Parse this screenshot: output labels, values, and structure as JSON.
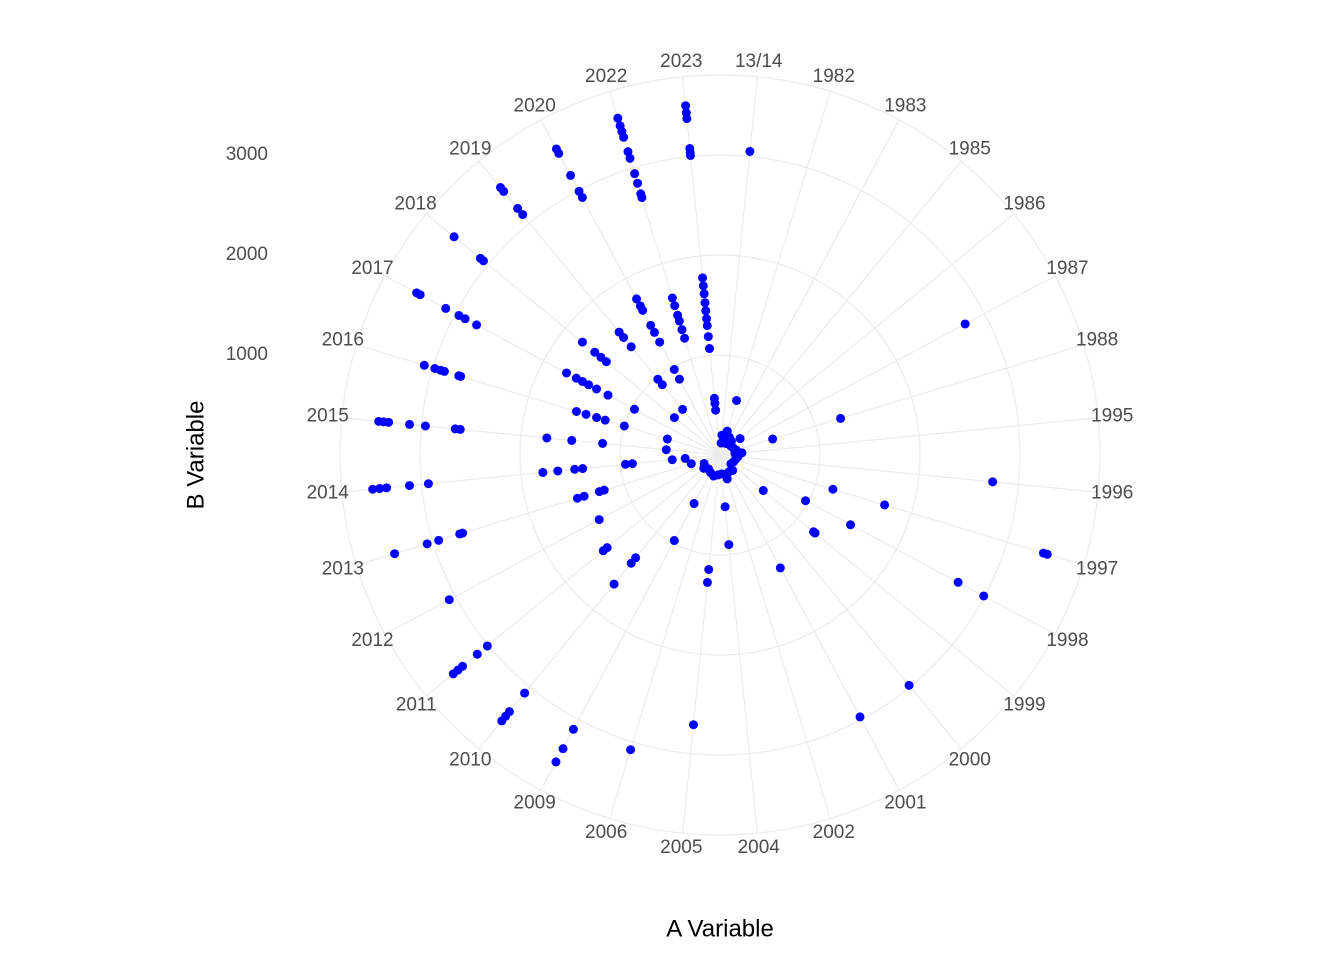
{
  "chart_data": {
    "type": "polar-scatter",
    "x_label": "A Variable",
    "y_label": "B Variable",
    "categories": [
      "13/14",
      "1982",
      "1983",
      "1985",
      "1986",
      "1987",
      "1988",
      "1995",
      "1996",
      "1997",
      "1998",
      "1999",
      "2000",
      "2001",
      "2002",
      "2004",
      "2005",
      "2006",
      "2009",
      "2010",
      "2011",
      "2012",
      "2013",
      "2014",
      "2015",
      "2016",
      "2017",
      "2018",
      "2019",
      "2020",
      "2022",
      "2023"
    ],
    "color": "blue",
    "grid": true,
    "ylim": [
      0,
      3800
    ],
    "yticks": [
      1000,
      2000,
      3000
    ],
    "series": [
      {
        "x": "13/14",
        "values": [
          3050,
          200,
          120
        ]
      },
      {
        "x": "1982",
        "values": [
          570,
          250,
          150
        ]
      },
      {
        "x": "1983",
        "values": [
          200,
          130
        ]
      },
      {
        "x": "1985",
        "values": [
          180
        ]
      },
      {
        "x": "1986",
        "values": [
          260,
          140
        ]
      },
      {
        "x": "1987",
        "values": [
          2780,
          150
        ]
      },
      {
        "x": "1988",
        "values": [
          1260,
          550,
          170
        ]
      },
      {
        "x": "1995",
        "values": [
          150,
          220
        ]
      },
      {
        "x": "1996",
        "values": [
          2740,
          180
        ]
      },
      {
        "x": "1997",
        "values": [
          3380,
          3420,
          1720,
          1180,
          160
        ]
      },
      {
        "x": "1998",
        "values": [
          2700,
          2990,
          1480,
          970,
          150
        ]
      },
      {
        "x": "1999",
        "values": [
          1210,
          1230,
          560,
          140
        ]
      },
      {
        "x": "2000",
        "values": [
          2980,
          200
        ]
      },
      {
        "x": "2001",
        "values": [
          2970,
          1280,
          190
        ]
      },
      {
        "x": "2002",
        "values": [
          200,
          250
        ]
      },
      {
        "x": "2004",
        "values": [
          900,
          520,
          190
        ]
      },
      {
        "x": "2005",
        "values": [
          2710,
          1150,
          1280,
          200
        ]
      },
      {
        "x": "2006",
        "values": [
          3080,
          220
        ]
      },
      {
        "x": "2009",
        "values": [
          3110,
          3330,
          3480,
          970,
          550,
          200
        ]
      },
      {
        "x": "2010",
        "values": [
          3080,
          3440,
          3380,
          3320,
          1330,
          1400,
          1670,
          180
        ]
      },
      {
        "x": "2011",
        "values": [
          3010,
          3140,
          3330,
          3390,
          3450,
          1510,
          1460,
          210
        ]
      },
      {
        "x": "2012",
        "values": [
          3070,
          1370,
          180
        ]
      },
      {
        "x": "2013",
        "values": [
          3400,
          3060,
          2940,
          2720,
          2690,
          1490,
          1420,
          1260,
          1210,
          300
        ]
      },
      {
        "x": "2014",
        "values": [
          3490,
          3420,
          3350,
          3120,
          2930,
          1780,
          1630,
          1460,
          1380,
          950,
          880,
          350,
          480
        ]
      },
      {
        "x": "2015",
        "values": [
          3430,
          3380,
          3330,
          3120,
          2960,
          2660,
          2610,
          1740,
          1490,
          1180,
          540
        ]
      },
      {
        "x": "2016",
        "values": [
          3090,
          2980,
          2920,
          2880,
          2730,
          2710,
          1500,
          1400,
          1290,
          1200,
          1000,
          550
        ]
      },
      {
        "x": "2017",
        "values": [
          3440,
          3400,
          3110,
          2960,
          2890,
          2760,
          1740,
          1630,
          1560,
          1490,
          1400,
          1270,
          970
        ]
      },
      {
        "x": "2018",
        "values": [
          3440,
          3100,
          3060,
          1780,
          1620,
          1540,
          1470,
          590
        ]
      },
      {
        "x": "2019",
        "values": [
          3460,
          3410,
          3190,
          3110,
          1590,
          1520,
          1400,
          980,
          910,
          590
        ]
      },
      {
        "x": "2020",
        "values": [
          3470,
          3420,
          3170,
          2990,
          2920,
          1770,
          1690,
          1640,
          1470,
          1390,
          1280,
          970,
          860
        ]
      },
      {
        "x": "2022",
        "values": [
          3520,
          3440,
          3380,
          3320,
          3170,
          3100,
          2940,
          2840,
          2730,
          2690,
          1640,
          1560,
          1460,
          1400,
          1310,
          1220
        ]
      },
      {
        "x": "2023",
        "values": [
          3510,
          3440,
          3380,
          3080,
          3040,
          3010,
          1780,
          1700,
          1620,
          1530,
          1450,
          1370,
          1300,
          1190,
          1070,
          570,
          520,
          450
        ]
      }
    ]
  }
}
